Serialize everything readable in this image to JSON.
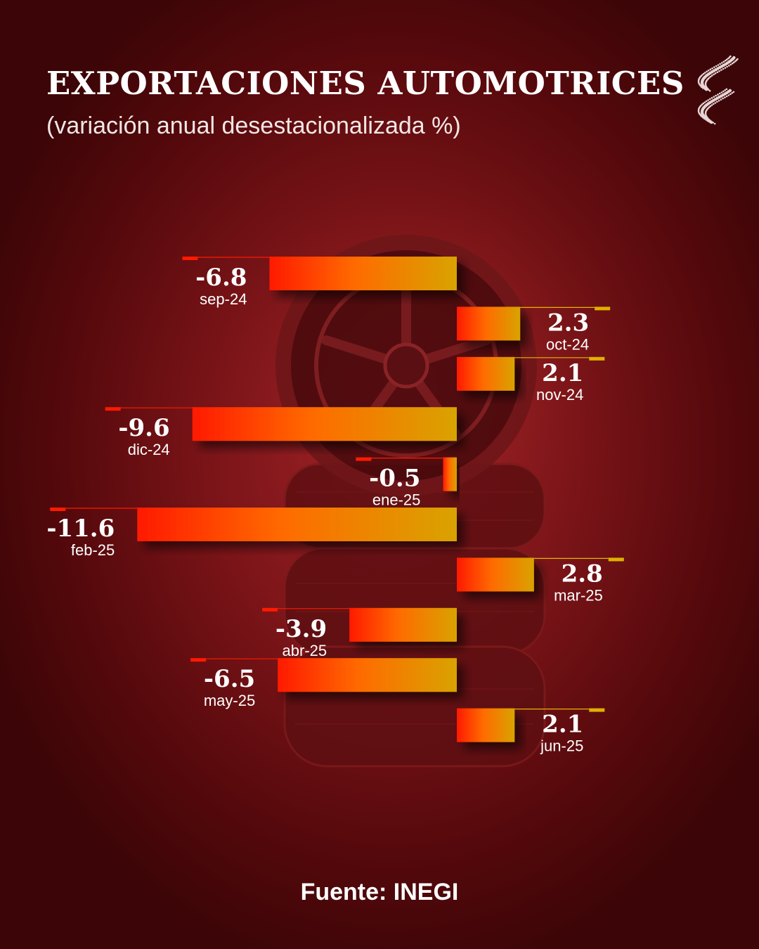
{
  "header": {
    "title": "EXPORTACIONES AUTOMOTRICES",
    "subtitle": "(variación anual desestacionalizada %)"
  },
  "footer": {
    "source": "Fuente: INEGI"
  },
  "colors": {
    "bar_start": "#ff1a00",
    "bar_mid": "#ff6a00",
    "bar_end": "#d9a300",
    "neg_accent": "#ff1a00",
    "pos_accent": "#e0b000",
    "leader_line": "#e8b400"
  },
  "chart_data": {
    "type": "bar",
    "orientation": "horizontal",
    "title": "EXPORTACIONES AUTOMOTRICES",
    "subtitle": "(variación anual desestacionalizada %)",
    "categories": [
      "sep-24",
      "oct-24",
      "nov-24",
      "dic-24",
      "ene-25",
      "feb-25",
      "mar-25",
      "abr-25",
      "may-25",
      "jun-25"
    ],
    "values": [
      -6.8,
      2.3,
      2.1,
      -9.6,
      -0.5,
      -11.6,
      2.8,
      -3.9,
      -6.5,
      2.1
    ],
    "value_labels": [
      "-6.8",
      "2.3",
      "2.1",
      "-9.6",
      "-0.5",
      "-11.6",
      "2.8",
      "-3.9",
      "-6.5",
      "2.1"
    ],
    "xlabel": "",
    "ylabel": "",
    "xlim": [
      -11.6,
      2.8
    ],
    "grid": false,
    "legend": "none",
    "source": "Fuente: INEGI"
  }
}
